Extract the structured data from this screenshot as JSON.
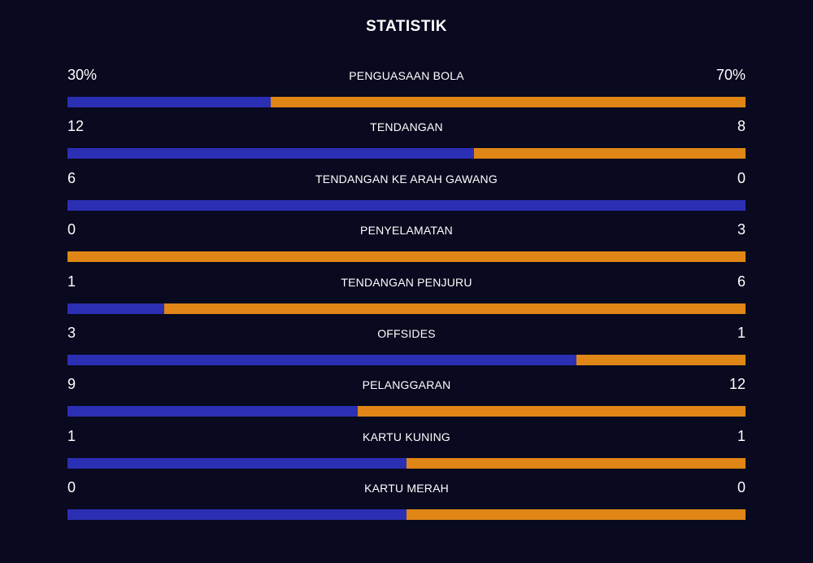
{
  "title": "STATISTIK",
  "colors": {
    "background": "#09091f",
    "home": "#2b2fb3",
    "away": "#df8616",
    "text": "#ffffff"
  },
  "stats": [
    {
      "label": "PENGUASAAN BOLA",
      "home": "30%",
      "away": "70%",
      "home_share": 0.3
    },
    {
      "label": "TENDANGAN",
      "home": "12",
      "away": "8",
      "home_share": 0.6
    },
    {
      "label": "TENDANGAN KE ARAH GAWANG",
      "home": "6",
      "away": "0",
      "home_share": 1.0
    },
    {
      "label": "PENYELAMATAN",
      "home": "0",
      "away": "3",
      "home_share": 0.0
    },
    {
      "label": "TENDANGAN PENJURU",
      "home": "1",
      "away": "6",
      "home_share": 0.1429
    },
    {
      "label": "OFFSIDES",
      "home": "3",
      "away": "1",
      "home_share": 0.75
    },
    {
      "label": "PELANGGARAN",
      "home": "9",
      "away": "12",
      "home_share": 0.4286
    },
    {
      "label": "KARTU KUNING",
      "home": "1",
      "away": "1",
      "home_share": 0.5
    },
    {
      "label": "KARTU MERAH",
      "home": "0",
      "away": "0",
      "home_share": 0.5
    }
  ]
}
